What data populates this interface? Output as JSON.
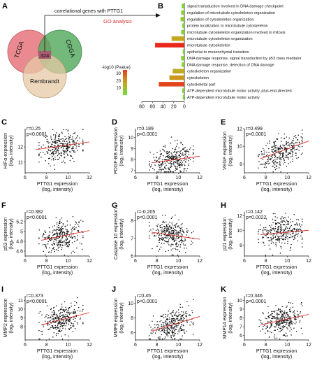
{
  "panels": {
    "A": "A",
    "B": "B",
    "C": "C",
    "D": "D",
    "E": "E",
    "F": "F",
    "G": "G",
    "H": "H",
    "I": "I",
    "J": "J",
    "K": "K"
  },
  "venn": {
    "circles": [
      {
        "label": "TCGA",
        "color": "#e8747c"
      },
      {
        "label": "CGGA",
        "color": "#4fa85a"
      },
      {
        "label": "Rembrandt",
        "color": "#e7c9a6"
      }
    ],
    "center_value": "324",
    "arrow_label": "correlational genes with PTTG1",
    "analysis_label": "GO analysis",
    "analysis_color": "#d9342b"
  },
  "scatter_x_label": "PTTG1 expression",
  "scatter_x_unit": "(log₂ intensity)",
  "chart_data": [
    {
      "type": "bar",
      "panel": "B",
      "xlabel": "-log10 (Pvalue)",
      "xlim": [
        80,
        0
      ],
      "xticks": [
        80,
        60,
        40,
        20,
        0
      ],
      "legend": {
        "title": "-log10 (Pvalue)",
        "ticks": [
          30,
          20,
          10
        ],
        "range": [
          0,
          35
        ]
      },
      "categories": [
        "signal transduction involved in DNA damage checkpoint",
        "regulation of microtubule cytoskeleton organization",
        "regulation of cytoskeleton organization",
        "protein localization to microtubule cytoskeleton",
        "microtubule cytoskeleton organization involved in mitosis",
        "microtubule cytoskeleton organization",
        "microtubule cytoskeleton",
        "epithelial to mesenchymal transition",
        "DNA damage response, signal transduction by p53 class mediator",
        "DNA damage response, detection of DNA damage",
        "cytoskeleton organization",
        "cytoskeleton",
        "cytoskeletal part",
        "ATP-dependent microtubule motor activity, plus-end-directed",
        "ATP-dependent microtubule motor activity"
      ],
      "values": [
        5,
        6,
        7,
        4,
        6,
        24,
        55,
        3,
        6,
        5,
        22,
        28,
        48,
        4,
        3
      ]
    },
    {
      "type": "scatter",
      "panel": "C",
      "ylabel": "HIFα expression",
      "yunit": "(log₂ intensity)",
      "r": "r=0.25",
      "p": "p<0.0001",
      "xlim": [
        6,
        12
      ],
      "ylim": [
        10.3,
        13.2
      ],
      "xticks": [
        6,
        8,
        10,
        12
      ],
      "yticks": [
        11,
        12
      ],
      "trend": [
        [
          7,
          11.82
        ],
        [
          12,
          12.33
        ]
      ],
      "n": 300,
      "seed": 11
    },
    {
      "type": "scatter",
      "panel": "D",
      "ylabel": "PDGF-BB expression",
      "yunit": "(log₂ intensity)",
      "r": "r=0.189",
      "p": "p<0.0001",
      "xlim": [
        6,
        12
      ],
      "ylim": [
        6.8,
        10.8
      ],
      "xticks": [
        6,
        8,
        10,
        12
      ],
      "yticks": [
        7,
        8,
        9,
        10
      ],
      "trend": [
        [
          7.5,
          7.7
        ],
        [
          12,
          8.3
        ]
      ],
      "n": 300,
      "seed": 23
    },
    {
      "type": "scatter",
      "panel": "E",
      "ylabel": "VEGF expression",
      "yunit": "(log₂ intensity)",
      "r": "r=0.499",
      "p": "p<0.0001",
      "xlim": [
        6,
        12
      ],
      "ylim": [
        7,
        12
      ],
      "xticks": [
        6,
        8,
        10,
        12
      ],
      "yticks": [
        8,
        10,
        12
      ],
      "trend": [
        [
          7.5,
          8.6
        ],
        [
          12,
          10.6
        ]
      ],
      "n": 300,
      "seed": 37
    },
    {
      "type": "scatter",
      "panel": "F",
      "ylabel": "p53 expression",
      "yunit": "(log₂ intensity)",
      "r": "r=0.382",
      "p": "p<0.0001",
      "xlim": [
        6,
        12
      ],
      "ylim": [
        4.5,
        5.4
      ],
      "xticks": [
        6,
        8,
        10,
        12
      ],
      "yticks": [
        4.6,
        4.8,
        5.0,
        5.2
      ],
      "trend": [
        [
          7.5,
          4.82
        ],
        [
          12,
          5.02
        ]
      ],
      "n": 300,
      "seed": 41
    },
    {
      "type": "scatter",
      "panel": "G",
      "ylabel": "Caspase 10 expression",
      "yunit": "(log₂ intensity)",
      "r": "r=-0.205",
      "p": "p<0.0001",
      "xlim": [
        6,
        12
      ],
      "ylim": [
        6,
        8.5
      ],
      "xticks": [
        6,
        8,
        10,
        12
      ],
      "yticks": [
        6,
        7,
        8
      ],
      "trend": [
        [
          7.5,
          7.35
        ],
        [
          12,
          6.95
        ]
      ],
      "n": 300,
      "seed": 53
    },
    {
      "type": "scatter",
      "panel": "H",
      "ylabel": "p21 expression",
      "yunit": "(log₂ intensity)",
      "r": "r=0.142",
      "p": "p=0.0022",
      "xlim": [
        6,
        12
      ],
      "ylim": [
        6.5,
        12.5
      ],
      "xticks": [
        6,
        8,
        10,
        12
      ],
      "yticks": [
        8,
        10,
        12
      ],
      "trend": [
        [
          7.5,
          9.4
        ],
        [
          12,
          10.0
        ]
      ],
      "n": 300,
      "seed": 67
    },
    {
      "type": "scatter",
      "panel": "I",
      "ylabel": "MMP2 expression",
      "yunit": "(log₂ intensity)",
      "r": "r=0.373",
      "p": "p<0.0001",
      "xlim": [
        6,
        12
      ],
      "ylim": [
        6.5,
        11.5
      ],
      "xticks": [
        6,
        8,
        10,
        12
      ],
      "yticks": [
        8,
        9,
        10,
        11
      ],
      "trend": [
        [
          7.5,
          8.2
        ],
        [
          12,
          9.6
        ]
      ],
      "n": 300,
      "seed": 71
    },
    {
      "type": "scatter",
      "panel": "J",
      "ylabel": "MMP9 expression",
      "yunit": "(log₂ intensity)",
      "r": "r=0.45",
      "p": "p<0.0001",
      "xlim": [
        6,
        12
      ],
      "ylim": [
        5,
        11
      ],
      "xticks": [
        6,
        8,
        10,
        12
      ],
      "yticks": [
        6,
        8,
        10
      ],
      "trend": [
        [
          7.5,
          6.2
        ],
        [
          12,
          8.2
        ]
      ],
      "n": 300,
      "seed": 83
    },
    {
      "type": "scatter",
      "panel": "K",
      "ylabel": "MMP14 expression",
      "yunit": "(log₂ intensity)",
      "r": "r=0.346",
      "p": "p<0.0001",
      "xlim": [
        6,
        12
      ],
      "ylim": [
        5.5,
        10.5
      ],
      "xticks": [
        6,
        8,
        10,
        12
      ],
      "yticks": [
        6,
        7,
        8,
        9,
        10
      ],
      "trend": [
        [
          7.5,
          7.2
        ],
        [
          12,
          8.4
        ]
      ],
      "n": 300,
      "seed": 97
    }
  ]
}
